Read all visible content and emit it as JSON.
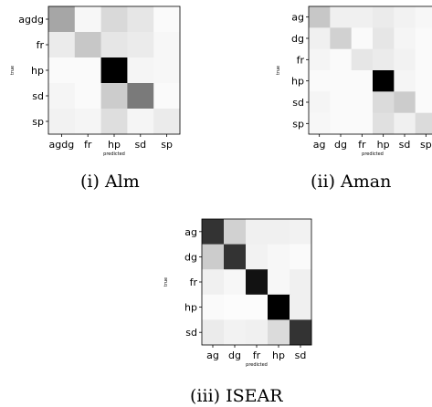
{
  "chart_data": [
    {
      "type": "heatmap",
      "caption": "(i) Alm",
      "xlabel": "predicted",
      "ylabel": "true",
      "x_categories": [
        "agdg",
        "fr",
        "hp",
        "sd",
        "sp"
      ],
      "y_categories": [
        "agdg",
        "fr",
        "hp",
        "sd",
        "sp"
      ],
      "colormap": "white-to-black (greys)",
      "values": [
        [
          0.35,
          0.03,
          0.15,
          0.1,
          0.02
        ],
        [
          0.08,
          0.22,
          0.1,
          0.08,
          0.03
        ],
        [
          0.02,
          0.02,
          1.0,
          0.04,
          0.03
        ],
        [
          0.04,
          0.02,
          0.2,
          0.52,
          0.02
        ],
        [
          0.05,
          0.04,
          0.13,
          0.04,
          0.08
        ]
      ]
    },
    {
      "type": "heatmap",
      "caption": "(ii) Aman",
      "xlabel": "predicted",
      "ylabel": "true",
      "x_categories": [
        "ag",
        "dg",
        "fr",
        "hp",
        "sd",
        "sp"
      ],
      "y_categories": [
        "ag",
        "dg",
        "fr",
        "hp",
        "sd",
        "sp"
      ],
      "colormap": "white-to-black (greys)",
      "values": [
        [
          0.22,
          0.06,
          0.06,
          0.08,
          0.05,
          0.03
        ],
        [
          0.06,
          0.18,
          0.02,
          0.1,
          0.04,
          0.02
        ],
        [
          0.04,
          0.02,
          0.1,
          0.08,
          0.05,
          0.02
        ],
        [
          0.02,
          0.02,
          0.02,
          1.0,
          0.04,
          0.02
        ],
        [
          0.04,
          0.02,
          0.02,
          0.14,
          0.2,
          0.02
        ],
        [
          0.03,
          0.02,
          0.02,
          0.12,
          0.06,
          0.14
        ]
      ]
    },
    {
      "type": "heatmap",
      "caption": "(iii) ISEAR",
      "xlabel": "predicted",
      "ylabel": "true",
      "x_categories": [
        "ag",
        "dg",
        "fr",
        "hp",
        "sd"
      ],
      "y_categories": [
        "ag",
        "dg",
        "fr",
        "hp",
        "sd"
      ],
      "colormap": "white-to-black (greys)",
      "values": [
        [
          0.8,
          0.18,
          0.06,
          0.06,
          0.05
        ],
        [
          0.2,
          0.8,
          0.05,
          0.03,
          0.02
        ],
        [
          0.06,
          0.03,
          0.93,
          0.03,
          0.06
        ],
        [
          0.02,
          0.01,
          0.01,
          1.0,
          0.06
        ],
        [
          0.08,
          0.05,
          0.06,
          0.14,
          0.8
        ]
      ]
    }
  ]
}
